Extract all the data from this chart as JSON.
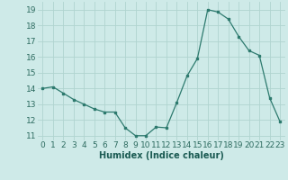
{
  "x": [
    0,
    1,
    2,
    3,
    4,
    5,
    6,
    7,
    8,
    9,
    10,
    11,
    12,
    13,
    14,
    15,
    16,
    17,
    18,
    19,
    20,
    21,
    22,
    23
  ],
  "y": [
    14.0,
    14.1,
    13.7,
    13.3,
    13.0,
    12.7,
    12.5,
    12.5,
    11.5,
    11.0,
    11.0,
    11.55,
    11.5,
    13.1,
    14.8,
    15.9,
    19.0,
    18.85,
    18.4,
    17.3,
    16.4,
    16.1,
    13.4,
    11.9
  ],
  "xlabel": "Humidex (Indice chaleur)",
  "ylim": [
    10.7,
    19.5
  ],
  "xlim": [
    -0.5,
    23.5
  ],
  "yticks": [
    11,
    12,
    13,
    14,
    15,
    16,
    17,
    18,
    19
  ],
  "xticks": [
    0,
    1,
    2,
    3,
    4,
    5,
    6,
    7,
    8,
    9,
    10,
    11,
    12,
    13,
    14,
    15,
    16,
    17,
    18,
    19,
    20,
    21,
    22,
    23
  ],
  "xtick_labels": [
    "0",
    "1",
    "2",
    "3",
    "4",
    "5",
    "6",
    "7",
    "8",
    "9",
    "10",
    "11",
    "12",
    "13",
    "14",
    "15",
    "16",
    "17",
    "18",
    "19",
    "20",
    "21",
    "22",
    "23"
  ],
  "line_color": "#2d7a6e",
  "marker_color": "#2d7a6e",
  "bg_color": "#ceeae8",
  "grid_color": "#b0d4d0",
  "xlabel_fontsize": 7,
  "tick_fontsize": 6.5
}
